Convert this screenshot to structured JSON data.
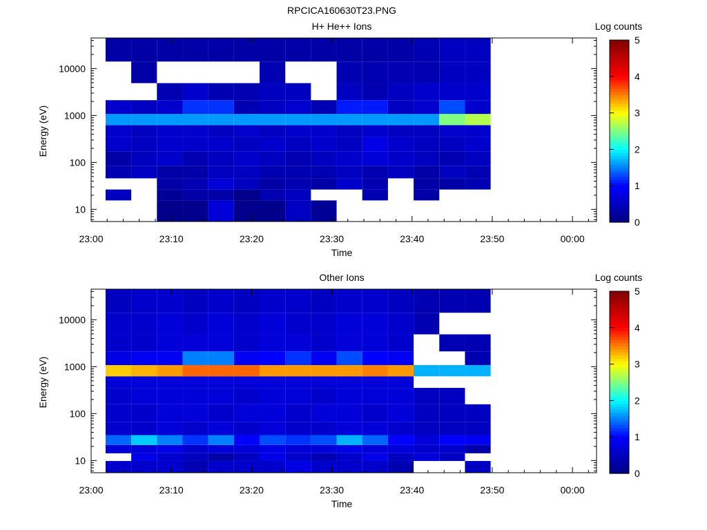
{
  "figure": {
    "title": "RPCICA160630T23.PNG"
  },
  "colorbar_colors": [
    "#000080",
    "#0000ff",
    "#00ffff",
    "#ffff00",
    "#ff0000",
    "#800000"
  ],
  "chart_data": [
    {
      "type": "heatmap",
      "title": "H+ He++ Ions",
      "xlabel": "Time",
      "ylabel": "Energy (eV)",
      "x_tick_labels": [
        "23:00",
        "23:10",
        "23:20",
        "23:30",
        "23:40",
        "23:50",
        "00:00"
      ],
      "x_range_minutes": [
        0,
        63
      ],
      "y_scale": "log",
      "y_tick_labels": [
        "10",
        "100",
        "1000",
        "10000"
      ],
      "y_range": [
        5.5,
        45000
      ],
      "colorbar_label": "Log counts",
      "colorbar_range": [
        0,
        5
      ],
      "colorbar_tick_labels": [
        "0",
        "1",
        "2",
        "3",
        "4",
        "5"
      ],
      "time_bins_minutes": [
        1.8,
        5,
        8.2,
        11.4,
        14.6,
        17.8,
        21,
        24.2,
        27.4,
        30.6,
        33.8,
        37,
        40.2,
        43.4,
        46.6,
        49.8
      ],
      "energy_bands": [
        {
          "energy_ev": 12,
          "values": [
            null,
            null,
            0.1,
            0.1,
            0.7,
            0.1,
            0.1,
            0.5,
            0.2,
            null,
            null,
            null,
            null,
            null,
            null
          ]
        },
        {
          "energy_ev": 20,
          "values": [
            0.5,
            null,
            0.2,
            0.3,
            0.3,
            0.1,
            0.4,
            0.5,
            null,
            null,
            0.4,
            null,
            0.3,
            null,
            null
          ]
        },
        {
          "energy_ev": 35,
          "values": [
            null,
            null,
            0.3,
            0.4,
            0.7,
            0.5,
            0.3,
            0.4,
            0.3,
            0.6,
            0.4,
            null,
            0.3,
            0.3,
            0.4
          ]
        },
        {
          "energy_ev": 60,
          "values": [
            0.4,
            0.5,
            0.3,
            0.3,
            0.5,
            0.5,
            0.4,
            0.4,
            0.4,
            0.5,
            0.4,
            0.5,
            0.3,
            0.5,
            0.4
          ]
        },
        {
          "energy_ev": 120,
          "values": [
            0.3,
            0.5,
            0.6,
            0.4,
            0.5,
            0.6,
            0.5,
            0.4,
            0.5,
            0.6,
            0.7,
            0.6,
            0.5,
            0.4,
            0.5
          ]
        },
        {
          "energy_ev": 250,
          "values": [
            0.6,
            0.5,
            0.6,
            0.6,
            0.6,
            0.5,
            0.6,
            0.5,
            0.6,
            0.5,
            0.8,
            0.6,
            0.5,
            0.5,
            0.6
          ]
        },
        {
          "energy_ev": 500,
          "values": [
            0.6,
            0.5,
            0.6,
            0.6,
            0.5,
            0.6,
            0.5,
            0.6,
            0.6,
            0.5,
            0.6,
            0.5,
            0.5,
            0.6,
            0.6
          ]
        },
        {
          "energy_ev": 780,
          "values": [
            1.6,
            1.6,
            1.6,
            1.6,
            1.6,
            1.6,
            1.6,
            1.6,
            1.6,
            1.6,
            1.6,
            1.6,
            1.6,
            2.5,
            2.7
          ]
        },
        {
          "energy_ev": 1500,
          "values": [
            0.6,
            0.5,
            0.6,
            1.2,
            1.2,
            0.4,
            0.5,
            0.6,
            0.4,
            1.1,
            1.1,
            0.5,
            0.6,
            1.3,
            0.6
          ]
        },
        {
          "energy_ev": 3000,
          "values": [
            null,
            null,
            0.4,
            0.6,
            0.4,
            0.4,
            0.5,
            0.5,
            null,
            0.5,
            0.4,
            0.5,
            0.6,
            0.6,
            0.6
          ]
        },
        {
          "energy_ev": 8000,
          "values": [
            null,
            0.3,
            null,
            null,
            null,
            null,
            0.4,
            null,
            null,
            0.4,
            0.4,
            0.4,
            0.4,
            0.5,
            0.5
          ]
        },
        {
          "energy_ev": 25000,
          "values": [
            0.3,
            0.3,
            0.3,
            0.3,
            0.3,
            0.3,
            0.3,
            0.3,
            0.3,
            0.3,
            0.3,
            0.3,
            0.4,
            0.5,
            0.5
          ]
        }
      ]
    },
    {
      "type": "heatmap",
      "title": "Other Ions",
      "xlabel": "Time",
      "ylabel": "Energy (eV)",
      "x_tick_labels": [
        "23:00",
        "23:10",
        "23:20",
        "23:30",
        "23:40",
        "23:50",
        "00:00"
      ],
      "x_range_minutes": [
        0,
        63
      ],
      "y_scale": "log",
      "y_tick_labels": [
        "10",
        "100",
        "1000",
        "10000"
      ],
      "y_range": [
        5.5,
        45000
      ],
      "colorbar_label": "Log counts",
      "colorbar_range": [
        0,
        5
      ],
      "colorbar_tick_labels": [
        "0",
        "1",
        "2",
        "3",
        "4",
        "5"
      ],
      "time_bins_minutes": [
        1.8,
        5,
        8.2,
        11.4,
        14.6,
        17.8,
        21,
        24.2,
        27.4,
        30.6,
        33.8,
        37,
        40.2,
        43.4,
        46.6,
        49.8
      ],
      "energy_bands": [
        {
          "energy_ev": 8,
          "values": [
            0.6,
            0.6,
            0.6,
            0.4,
            0.6,
            0.6,
            0.6,
            0.8,
            0.6,
            0.6,
            0.6,
            0.4,
            null,
            null,
            0.5
          ]
        },
        {
          "energy_ev": 12,
          "values": [
            null,
            0.8,
            0.6,
            0.5,
            0.3,
            0.5,
            0.8,
            0.6,
            0.4,
            0.6,
            0.8,
            0.5,
            0.7,
            0.5,
            null
          ]
        },
        {
          "energy_ev": 17,
          "values": [
            0.7,
            0.7,
            0.8,
            0.6,
            0.7,
            0.7,
            0.8,
            0.7,
            0.7,
            0.8,
            0.7,
            0.7,
            0.6,
            0.6,
            0.3
          ]
        },
        {
          "energy_ev": 27,
          "values": [
            1.4,
            1.8,
            1.5,
            1.2,
            1.5,
            1.0,
            1.3,
            1.2,
            1.3,
            1.7,
            1.4,
            1.0,
            0.7,
            1.0,
            0.9
          ]
        },
        {
          "energy_ev": 45,
          "values": [
            0.6,
            0.6,
            0.7,
            0.6,
            0.7,
            0.6,
            0.7,
            0.6,
            0.6,
            0.7,
            0.7,
            0.6,
            0.5,
            0.5,
            0.5
          ]
        },
        {
          "energy_ev": 100,
          "values": [
            0.6,
            0.6,
            0.7,
            0.7,
            0.6,
            0.7,
            0.7,
            0.6,
            0.7,
            0.7,
            0.6,
            0.7,
            0.5,
            0.5,
            0.5
          ]
        },
        {
          "energy_ev": 250,
          "values": [
            0.6,
            0.7,
            0.7,
            0.7,
            0.7,
            0.6,
            0.7,
            0.7,
            0.6,
            0.7,
            0.7,
            0.7,
            0.5,
            0.5,
            null
          ]
        },
        {
          "energy_ev": 500,
          "values": [
            0.7,
            0.7,
            0.7,
            0.7,
            0.7,
            0.7,
            0.7,
            0.7,
            0.7,
            0.7,
            0.7,
            0.7,
            null,
            null,
            null
          ]
        },
        {
          "energy_ev": 780,
          "values": [
            3.2,
            3.3,
            3.4,
            3.6,
            3.6,
            3.6,
            3.4,
            3.4,
            3.4,
            3.4,
            3.5,
            3.4,
            1.7,
            1.7,
            1.7
          ]
        },
        {
          "energy_ev": 1500,
          "values": [
            0.8,
            0.9,
            0.9,
            1.5,
            1.5,
            0.9,
            1.0,
            1.2,
            0.9,
            1.3,
            1.0,
            0.9,
            null,
            null,
            0.4
          ]
        },
        {
          "energy_ev": 3000,
          "values": [
            0.6,
            0.6,
            0.7,
            0.7,
            0.7,
            0.6,
            0.7,
            0.7,
            0.6,
            0.7,
            0.7,
            0.6,
            null,
            0.4,
            0.4
          ]
        },
        {
          "energy_ev": 8000,
          "values": [
            0.6,
            0.6,
            0.7,
            0.6,
            0.7,
            0.6,
            0.7,
            0.6,
            0.6,
            0.7,
            0.7,
            0.6,
            0.4,
            null,
            null
          ]
        },
        {
          "energy_ev": 25000,
          "values": [
            0.5,
            0.6,
            0.6,
            0.5,
            0.6,
            0.5,
            0.6,
            0.6,
            0.5,
            0.6,
            0.6,
            0.5,
            0.4,
            0.4,
            0.4
          ]
        }
      ]
    }
  ]
}
